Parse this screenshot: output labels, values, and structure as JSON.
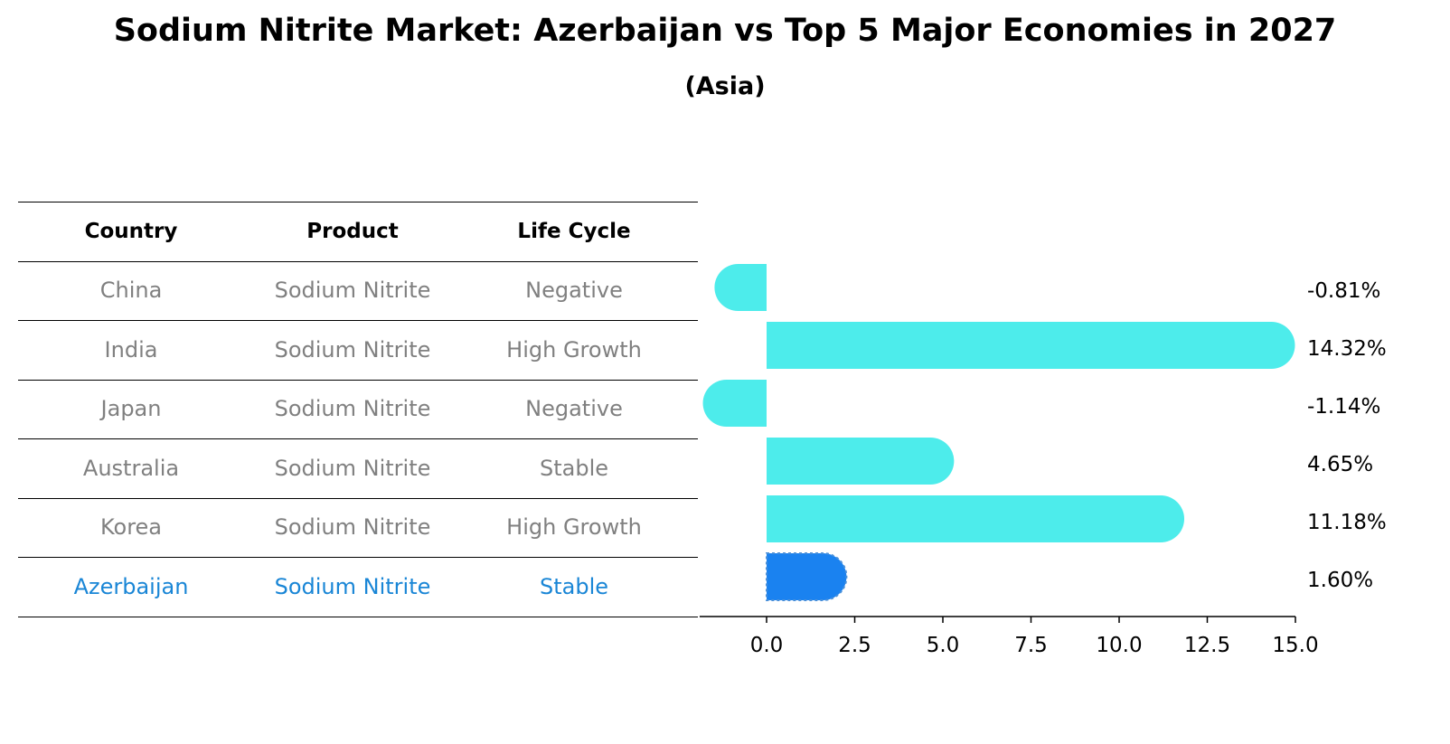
{
  "title": "Sodium Nitrite Market: Azerbaijan vs Top 5 Major Economies in 2027",
  "subtitle": "(Asia)",
  "table": {
    "headers": [
      "Country",
      "Product",
      "Life Cycle"
    ],
    "rows": [
      [
        "China",
        "Sodium Nitrite",
        "Negative"
      ],
      [
        "India",
        "Sodium Nitrite",
        "High Growth"
      ],
      [
        "Japan",
        "Sodium Nitrite",
        "Negative"
      ],
      [
        "Australia",
        "Sodium Nitrite",
        "Stable"
      ],
      [
        "Korea",
        "Sodium Nitrite",
        "High Growth"
      ],
      [
        "Azerbaijan",
        "Sodium Nitrite",
        "Stable"
      ]
    ],
    "highlight_row": 5,
    "highlight_color": "#1a86d6",
    "text_color": "#808080"
  },
  "chart_data": {
    "type": "bar",
    "orientation": "horizontal",
    "categories": [
      "China",
      "India",
      "Japan",
      "Australia",
      "Korea",
      "Azerbaijan"
    ],
    "values": [
      -0.81,
      14.32,
      -1.14,
      4.65,
      11.18,
      1.6
    ],
    "value_labels": [
      "-0.81%",
      "14.32%",
      "-1.14%",
      "4.65%",
      "11.18%",
      "1.60%"
    ],
    "xlim": [
      -1.9,
      15.0
    ],
    "xticks": [
      0.0,
      2.5,
      5.0,
      7.5,
      10.0,
      12.5,
      15.0
    ],
    "xtick_labels": [
      "0.0",
      "2.5",
      "5.0",
      "7.5",
      "10.0",
      "12.5",
      "15.0"
    ],
    "bar_color": "#4deceb",
    "highlight_color": "#1a82f0",
    "highlight_index": 5,
    "grid": false
  }
}
